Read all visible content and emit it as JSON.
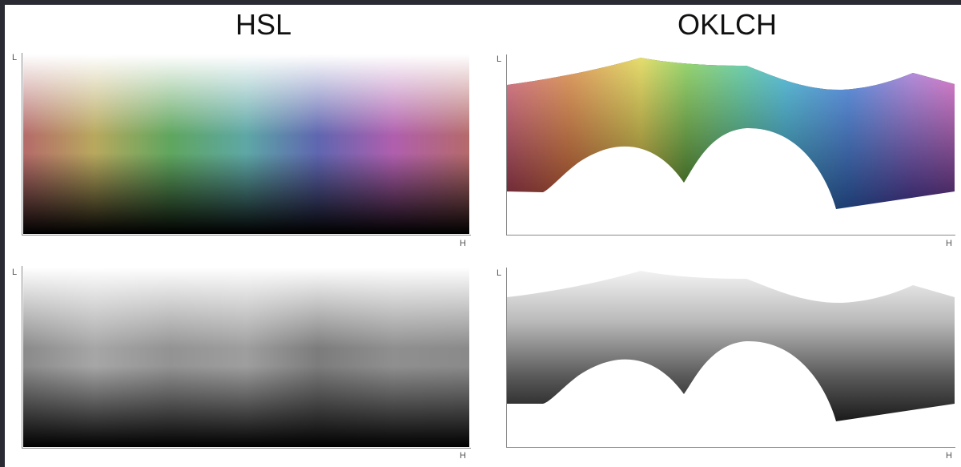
{
  "titles": {
    "left": "HSL",
    "right": "OKLCH"
  },
  "axes": {
    "y_label": "L",
    "x_label": "H"
  },
  "panels": [
    {
      "row": "top",
      "column": "HSL",
      "mode": "color"
    },
    {
      "row": "top",
      "column": "OKLCH",
      "mode": "color"
    },
    {
      "row": "bottom",
      "column": "HSL",
      "mode": "grayscale"
    },
    {
      "row": "bottom",
      "column": "OKLCH",
      "mode": "grayscale"
    }
  ]
}
